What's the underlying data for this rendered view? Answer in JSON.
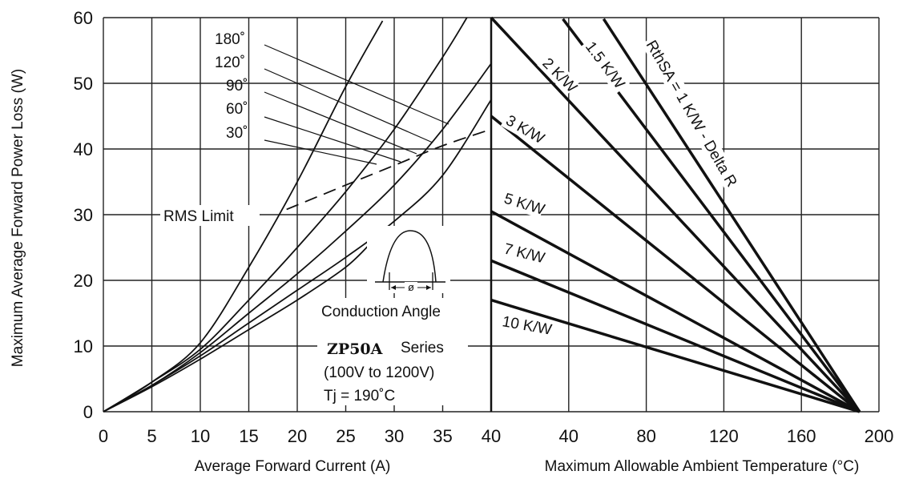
{
  "chart_data": [
    {
      "type": "line",
      "xlabel": "Average Forward Current (A)",
      "ylabel": "Maximum Average Forward Power Loss (W)",
      "xlim": [
        0,
        40
      ],
      "ylim": [
        0,
        60
      ],
      "x_ticks": [
        "0",
        "5",
        "10",
        "15",
        "20",
        "25",
        "30",
        "35",
        "40"
      ],
      "y_ticks": [
        "0",
        "10",
        "20",
        "30",
        "40",
        "50",
        "60"
      ],
      "grid": true,
      "series": [
        {
          "name": "180˚",
          "x": [
            0,
            5,
            10,
            15,
            20,
            25,
            28.8
          ],
          "y": [
            0,
            4.5,
            10.5,
            22,
            35,
            49.5,
            59.5
          ]
        },
        {
          "name": "120˚",
          "x": [
            0,
            5,
            10,
            15,
            20,
            25,
            30,
            35,
            37.5
          ],
          "y": [
            0,
            4.5,
            9.5,
            17,
            25,
            33.5,
            43,
            54,
            60
          ]
        },
        {
          "name": "90˚",
          "x": [
            0,
            5,
            10,
            15,
            20,
            25,
            30,
            35,
            40
          ],
          "y": [
            0,
            4,
            9,
            15,
            21,
            27.5,
            34.5,
            43,
            53
          ]
        },
        {
          "name": "60˚",
          "x": [
            0,
            5,
            10,
            15,
            20,
            25,
            30,
            35,
            40
          ],
          "y": [
            0,
            4,
            8.5,
            13.5,
            18.5,
            23.5,
            29,
            36,
            47.5
          ]
        },
        {
          "name": "30˚",
          "x": [
            0,
            5,
            10,
            15,
            20,
            25,
            27.8
          ],
          "y": [
            0,
            3.8,
            8,
            12.5,
            17,
            22,
            26
          ]
        },
        {
          "name": "RMS Limit",
          "dashed": true,
          "x": [
            18.9,
            25,
            30,
            35,
            40
          ],
          "y": [
            30.8,
            34.5,
            37.5,
            40.5,
            43
          ]
        }
      ],
      "annotations": {
        "angles": [
          "180˚",
          "120˚",
          "90˚",
          "60˚",
          "30˚"
        ],
        "rms_limit": "RMS Limit",
        "inset_symbol": "ø",
        "conduction_angle": "Conduction Angle",
        "series_model": "ZP50A",
        "series_word": "Series",
        "voltage_range": "(100V to 1200V)",
        "tj": "Tj = 190˚C"
      }
    },
    {
      "type": "line",
      "xlabel": "Maximum Allowable Ambient Temperature (°C)",
      "xlim": [
        40,
        200
      ],
      "ylim": [
        0,
        60
      ],
      "x_ticks": [
        "40",
        "40",
        "80",
        "120",
        "160",
        "200"
      ],
      "grid": true,
      "converge_point": {
        "x": 190,
        "y": 0
      },
      "series": [
        {
          "name": "RthSA = 1 K/W - Delta R",
          "x": [
            58,
            190
          ],
          "y": [
            59.8,
            0
          ]
        },
        {
          "name": "1.5 K/W",
          "x": [
            37,
            190
          ],
          "y": [
            59.8,
            0
          ]
        },
        {
          "name": "2 K/W",
          "x": [
            0,
            190
          ],
          "y": [
            60,
            0
          ]
        },
        {
          "name": "3 K/W",
          "x": [
            0,
            190
          ],
          "y": [
            45,
            0
          ]
        },
        {
          "name": "5 K/W",
          "x": [
            0,
            190
          ],
          "y": [
            30.5,
            0
          ]
        },
        {
          "name": "7 K/W",
          "x": [
            0,
            190
          ],
          "y": [
            23,
            0
          ]
        },
        {
          "name": "10 K/W",
          "x": [
            0,
            190
          ],
          "y": [
            17,
            0
          ]
        }
      ]
    }
  ]
}
